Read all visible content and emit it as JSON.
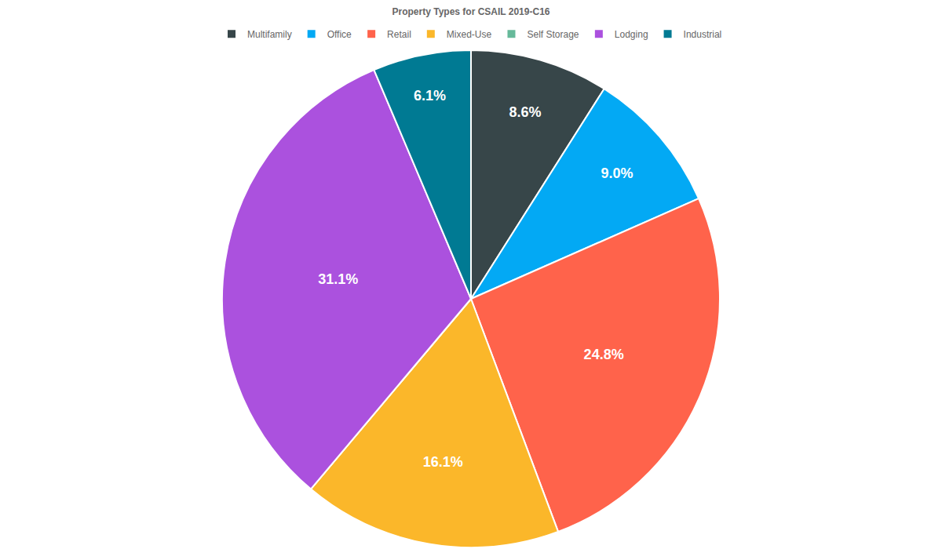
{
  "chart_data": {
    "type": "pie",
    "title": "Property Types for CSAIL 2019-C16",
    "categories": [
      "Multifamily",
      "Office",
      "Retail",
      "Mixed-Use",
      "Self Storage",
      "Lodging",
      "Industrial"
    ],
    "values": [
      8.6,
      9.0,
      24.8,
      16.1,
      0,
      31.1,
      6.1
    ],
    "value_labels": [
      "8.6%",
      "9.0%",
      "24.8%",
      "16.1%",
      null,
      "31.1%",
      "6.1%"
    ],
    "colors": [
      "#374649",
      "#03a9f4",
      "#ff634b",
      "#fbb72a",
      "#66b99a",
      "#ab51de",
      "#007a93"
    ],
    "data_labels": true,
    "legend": "top"
  }
}
